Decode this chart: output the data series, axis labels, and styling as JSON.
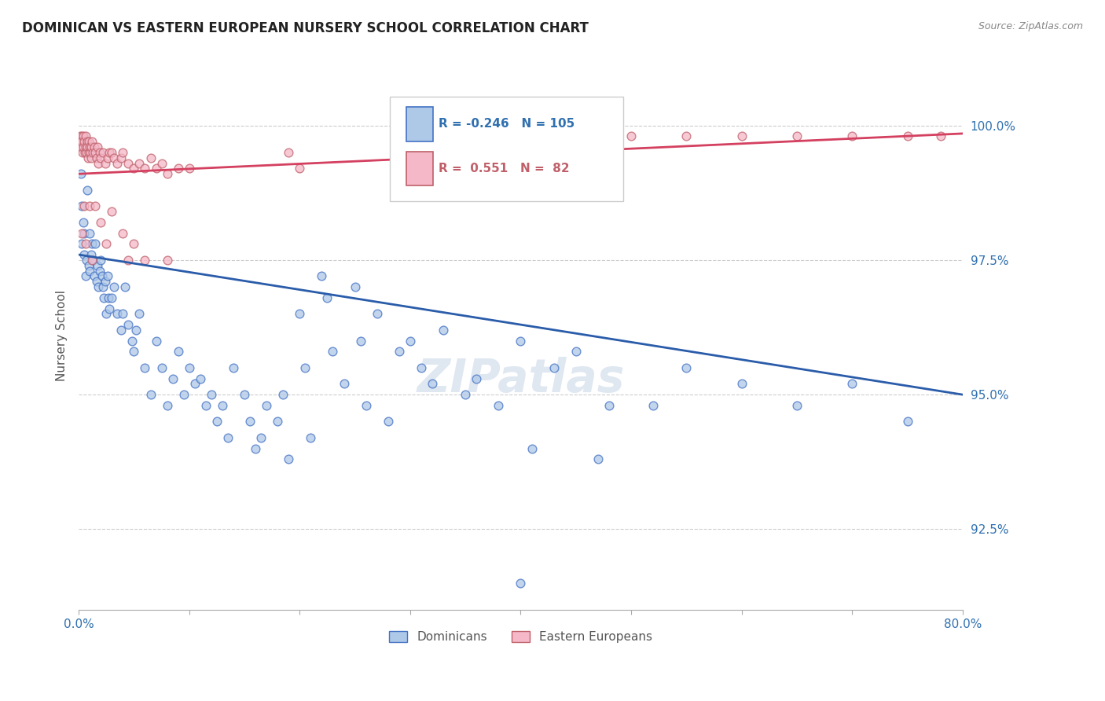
{
  "title": "DOMINICAN VS EASTERN EUROPEAN NURSERY SCHOOL CORRELATION CHART",
  "source": "Source: ZipAtlas.com",
  "ylabel": "Nursery School",
  "yticks": [
    92.5,
    95.0,
    97.5,
    100.0
  ],
  "ytick_labels": [
    "92.5%",
    "95.0%",
    "97.5%",
    "100.0%"
  ],
  "xrange": [
    0.0,
    80.0
  ],
  "yrange": [
    91.0,
    101.2
  ],
  "legend_blue_R": "-0.246",
  "legend_blue_N": "105",
  "legend_pink_R": " 0.551",
  "legend_pink_N": " 82",
  "blue_fill_color": "#aec8e8",
  "blue_edge_color": "#4472c4",
  "pink_fill_color": "#f4b8c8",
  "pink_edge_color": "#c0606a",
  "blue_line_color": "#2a5caa",
  "pink_line_color": "#d44060",
  "title_color": "#222222",
  "axis_label_color": "#3070b0",
  "watermark": "ZIPatlas",
  "blue_scatter": [
    [
      0.2,
      99.1
    ],
    [
      0.3,
      98.5
    ],
    [
      0.3,
      97.8
    ],
    [
      0.4,
      98.2
    ],
    [
      0.5,
      97.6
    ],
    [
      0.5,
      98.0
    ],
    [
      0.6,
      97.2
    ],
    [
      0.7,
      97.5
    ],
    [
      0.8,
      98.8
    ],
    [
      0.9,
      97.4
    ],
    [
      1.0,
      97.3
    ],
    [
      1.0,
      98.0
    ],
    [
      1.1,
      97.6
    ],
    [
      1.2,
      97.8
    ],
    [
      1.3,
      97.5
    ],
    [
      1.4,
      97.2
    ],
    [
      1.5,
      97.8
    ],
    [
      1.6,
      97.1
    ],
    [
      1.7,
      97.4
    ],
    [
      1.8,
      97.0
    ],
    [
      1.9,
      97.3
    ],
    [
      2.0,
      97.5
    ],
    [
      2.1,
      97.2
    ],
    [
      2.2,
      97.0
    ],
    [
      2.3,
      96.8
    ],
    [
      2.4,
      97.1
    ],
    [
      2.5,
      96.5
    ],
    [
      2.6,
      97.2
    ],
    [
      2.7,
      96.8
    ],
    [
      2.8,
      96.6
    ],
    [
      3.0,
      96.8
    ],
    [
      3.2,
      97.0
    ],
    [
      3.5,
      96.5
    ],
    [
      3.8,
      96.2
    ],
    [
      4.0,
      96.5
    ],
    [
      4.2,
      97.0
    ],
    [
      4.5,
      96.3
    ],
    [
      4.8,
      96.0
    ],
    [
      5.0,
      95.8
    ],
    [
      5.2,
      96.2
    ],
    [
      5.5,
      96.5
    ],
    [
      6.0,
      95.5
    ],
    [
      6.5,
      95.0
    ],
    [
      7.0,
      96.0
    ],
    [
      7.5,
      95.5
    ],
    [
      8.0,
      94.8
    ],
    [
      8.5,
      95.3
    ],
    [
      9.0,
      95.8
    ],
    [
      9.5,
      95.0
    ],
    [
      10.0,
      95.5
    ],
    [
      10.5,
      95.2
    ],
    [
      11.0,
      95.3
    ],
    [
      11.5,
      94.8
    ],
    [
      12.0,
      95.0
    ],
    [
      12.5,
      94.5
    ],
    [
      13.0,
      94.8
    ],
    [
      13.5,
      94.2
    ],
    [
      14.0,
      95.5
    ],
    [
      15.0,
      95.0
    ],
    [
      15.5,
      94.5
    ],
    [
      16.0,
      94.0
    ],
    [
      16.5,
      94.2
    ],
    [
      17.0,
      94.8
    ],
    [
      18.0,
      94.5
    ],
    [
      18.5,
      95.0
    ],
    [
      19.0,
      93.8
    ],
    [
      20.0,
      96.5
    ],
    [
      20.5,
      95.5
    ],
    [
      21.0,
      94.2
    ],
    [
      22.0,
      97.2
    ],
    [
      22.5,
      96.8
    ],
    [
      23.0,
      95.8
    ],
    [
      24.0,
      95.2
    ],
    [
      25.0,
      97.0
    ],
    [
      25.5,
      96.0
    ],
    [
      26.0,
      94.8
    ],
    [
      27.0,
      96.5
    ],
    [
      28.0,
      94.5
    ],
    [
      29.0,
      95.8
    ],
    [
      30.0,
      96.0
    ],
    [
      31.0,
      95.5
    ],
    [
      32.0,
      95.2
    ],
    [
      33.0,
      96.2
    ],
    [
      35.0,
      95.0
    ],
    [
      36.0,
      95.3
    ],
    [
      38.0,
      94.8
    ],
    [
      40.0,
      96.0
    ],
    [
      41.0,
      94.0
    ],
    [
      43.0,
      95.5
    ],
    [
      45.0,
      95.8
    ],
    [
      47.0,
      93.8
    ],
    [
      48.0,
      94.8
    ],
    [
      52.0,
      94.8
    ],
    [
      55.0,
      95.5
    ],
    [
      60.0,
      95.2
    ],
    [
      65.0,
      94.8
    ],
    [
      70.0,
      95.2
    ],
    [
      75.0,
      94.5
    ],
    [
      40.0,
      91.5
    ]
  ],
  "pink_scatter": [
    [
      0.1,
      99.8
    ],
    [
      0.15,
      99.7
    ],
    [
      0.2,
      99.6
    ],
    [
      0.25,
      99.8
    ],
    [
      0.3,
      99.7
    ],
    [
      0.35,
      99.5
    ],
    [
      0.4,
      99.8
    ],
    [
      0.45,
      99.6
    ],
    [
      0.5,
      99.7
    ],
    [
      0.55,
      99.5
    ],
    [
      0.6,
      99.8
    ],
    [
      0.65,
      99.6
    ],
    [
      0.7,
      99.5
    ],
    [
      0.75,
      99.7
    ],
    [
      0.8,
      99.6
    ],
    [
      0.85,
      99.4
    ],
    [
      0.9,
      99.7
    ],
    [
      0.95,
      99.5
    ],
    [
      1.0,
      99.6
    ],
    [
      1.05,
      99.5
    ],
    [
      1.1,
      99.6
    ],
    [
      1.15,
      99.4
    ],
    [
      1.2,
      99.7
    ],
    [
      1.3,
      99.5
    ],
    [
      1.4,
      99.6
    ],
    [
      1.5,
      99.5
    ],
    [
      1.6,
      99.4
    ],
    [
      1.7,
      99.6
    ],
    [
      1.8,
      99.3
    ],
    [
      1.9,
      99.5
    ],
    [
      2.0,
      99.4
    ],
    [
      2.2,
      99.5
    ],
    [
      2.4,
      99.3
    ],
    [
      2.6,
      99.4
    ],
    [
      2.8,
      99.5
    ],
    [
      3.0,
      99.5
    ],
    [
      3.2,
      99.4
    ],
    [
      3.5,
      99.3
    ],
    [
      3.8,
      99.4
    ],
    [
      4.0,
      99.5
    ],
    [
      4.5,
      99.3
    ],
    [
      5.0,
      99.2
    ],
    [
      5.5,
      99.3
    ],
    [
      6.0,
      99.2
    ],
    [
      6.5,
      99.4
    ],
    [
      7.0,
      99.2
    ],
    [
      7.5,
      99.3
    ],
    [
      8.0,
      99.1
    ],
    [
      9.0,
      99.2
    ],
    [
      10.0,
      99.2
    ],
    [
      0.5,
      98.5
    ],
    [
      1.0,
      98.5
    ],
    [
      1.5,
      98.5
    ],
    [
      2.0,
      98.2
    ],
    [
      3.0,
      98.4
    ],
    [
      4.0,
      98.0
    ],
    [
      5.0,
      97.8
    ],
    [
      0.3,
      98.0
    ],
    [
      0.6,
      97.8
    ],
    [
      1.2,
      97.5
    ],
    [
      2.5,
      97.8
    ],
    [
      4.5,
      97.5
    ],
    [
      6.0,
      97.5
    ],
    [
      8.0,
      97.5
    ],
    [
      19.0,
      99.5
    ],
    [
      20.0,
      99.2
    ],
    [
      50.0,
      99.8
    ],
    [
      55.0,
      99.8
    ],
    [
      60.0,
      99.8
    ],
    [
      65.0,
      99.8
    ],
    [
      70.0,
      99.8
    ],
    [
      75.0,
      99.8
    ],
    [
      78.0,
      99.8
    ]
  ]
}
